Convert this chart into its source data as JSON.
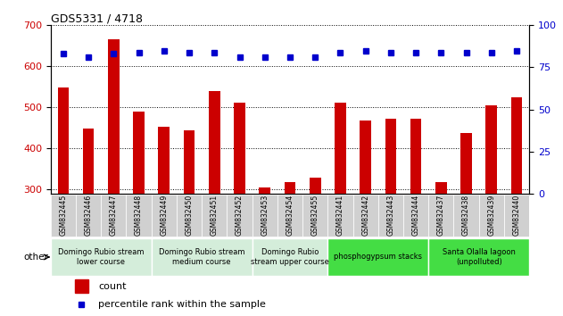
{
  "title": "GDS5331 / 4718",
  "samples": [
    "GSM832445",
    "GSM832446",
    "GSM832447",
    "GSM832448",
    "GSM832449",
    "GSM832450",
    "GSM832451",
    "GSM832452",
    "GSM832453",
    "GSM832454",
    "GSM832455",
    "GSM832441",
    "GSM832442",
    "GSM832443",
    "GSM832444",
    "GSM832437",
    "GSM832438",
    "GSM832439",
    "GSM832440"
  ],
  "counts": [
    548,
    449,
    665,
    490,
    453,
    445,
    540,
    512,
    306,
    318,
    330,
    512,
    469,
    472,
    472,
    318,
    437,
    505,
    525
  ],
  "percentiles_right": [
    83,
    81,
    83,
    84,
    85,
    84,
    84,
    81,
    81,
    81,
    81,
    84,
    85,
    84,
    84,
    84,
    84,
    84,
    85
  ],
  "groups": [
    {
      "label": "Domingo Rubio stream\nlower course",
      "start": 0,
      "end": 4,
      "color": "#d4edda"
    },
    {
      "label": "Domingo Rubio stream\nmedium course",
      "start": 4,
      "end": 8,
      "color": "#d4edda"
    },
    {
      "label": "Domingo Rubio\nstream upper course",
      "start": 8,
      "end": 11,
      "color": "#d4edda"
    },
    {
      "label": "phosphogypsum stacks",
      "start": 11,
      "end": 15,
      "color": "#66ee66"
    },
    {
      "label": "Santa Olalla lagoon\n(unpolluted)",
      "start": 15,
      "end": 19,
      "color": "#66ee66"
    }
  ],
  "bar_color": "#cc0000",
  "dot_color": "#0000cc",
  "ylim_left": [
    290,
    700
  ],
  "ylim_right": [
    0,
    100
  ],
  "yticks_left": [
    300,
    400,
    500,
    600,
    700
  ],
  "yticks_right": [
    0,
    25,
    50,
    75,
    100
  ],
  "bar_width": 0.45
}
